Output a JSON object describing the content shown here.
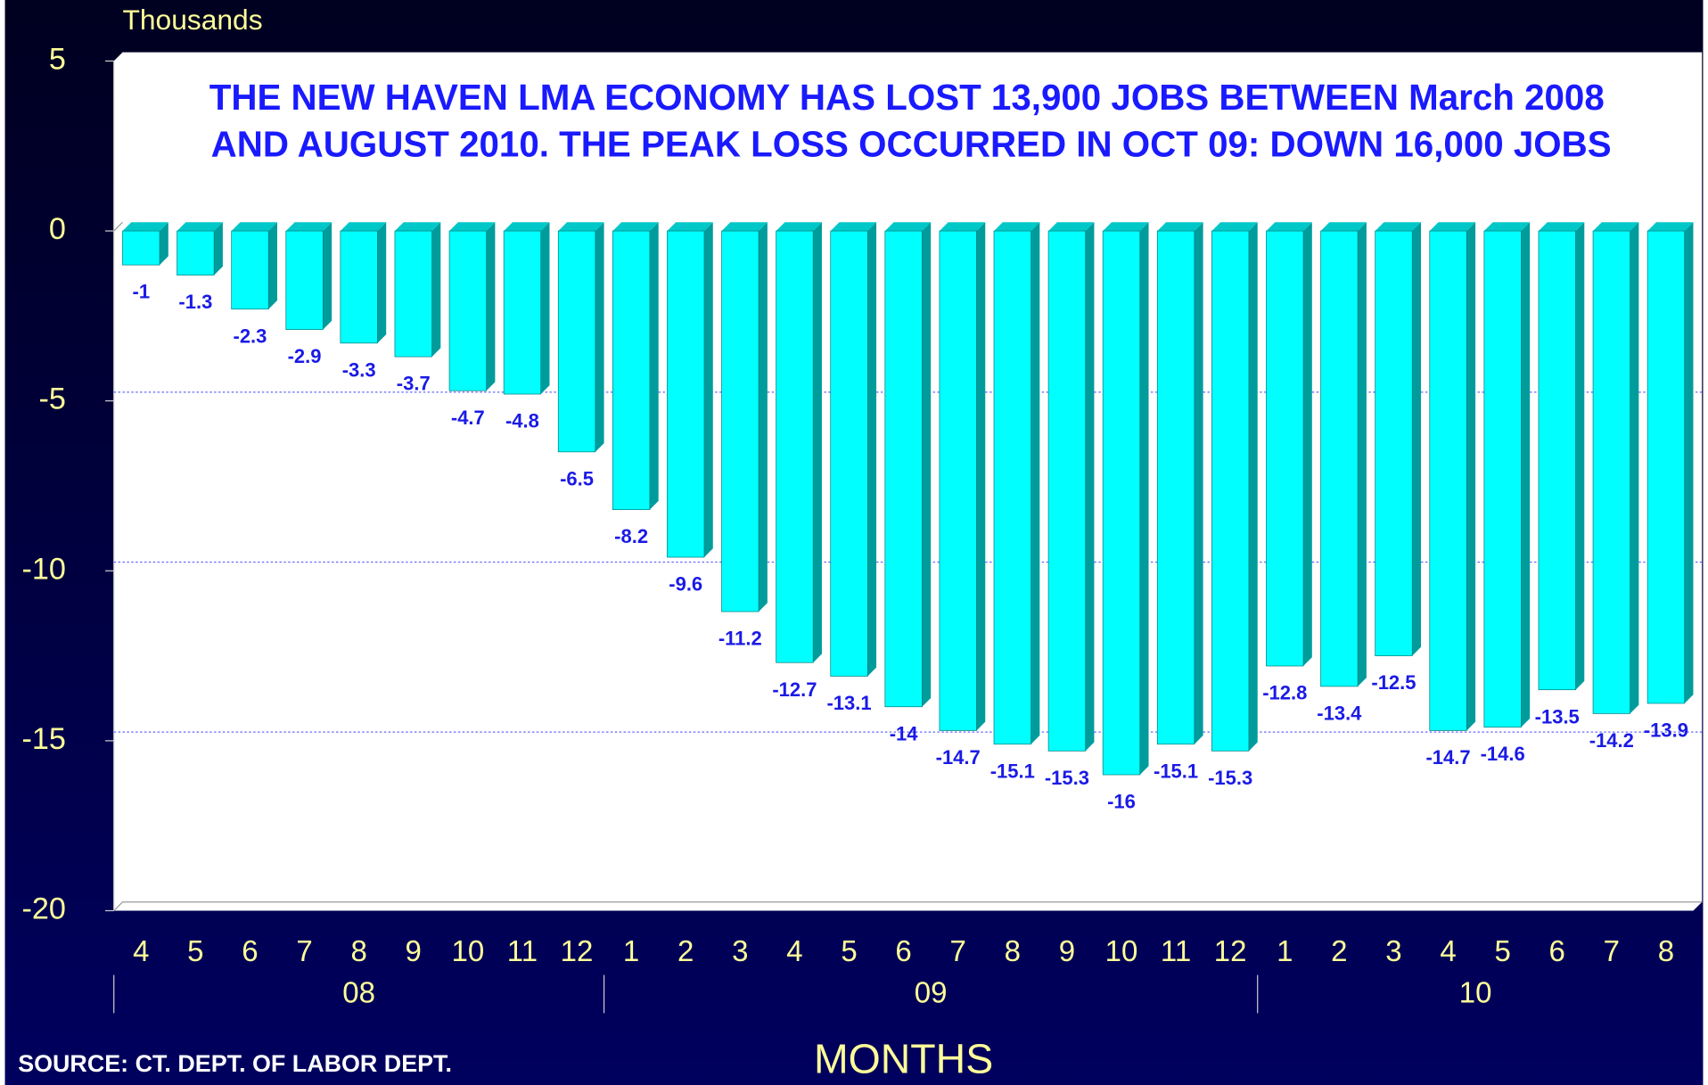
{
  "chart_data": {
    "type": "bar",
    "title": [
      "THE NEW HAVEN LMA ECONOMY HAS LOST 13,900 JOBS BETWEEN March 2008",
      "AND AUGUST 2010. THE PEAK LOSS OCCURRED IN OCT 09: DOWN 16,000 JOBS"
    ],
    "y_unit_label": "Thousands",
    "x_label": "MONTHS",
    "source": "SOURCE: CT. DEPT. OF LABOR DEPT.",
    "categories": [
      "4",
      "5",
      "6",
      "7",
      "8",
      "9",
      "10",
      "11",
      "12",
      "1",
      "2",
      "3",
      "4",
      "5",
      "6",
      "7",
      "8",
      "9",
      "10",
      "11",
      "12",
      "1",
      "2",
      "3",
      "4",
      "5",
      "6",
      "7",
      "8"
    ],
    "groups": [
      "08",
      "09",
      "10"
    ],
    "values": [
      -1,
      -1.3,
      -2.3,
      -2.9,
      -3.3,
      -3.7,
      -4.7,
      -4.8,
      -6.5,
      -8.2,
      -9.6,
      -11.2,
      -12.7,
      -13.1,
      -14,
      -14.7,
      -15.1,
      -15.3,
      -16,
      -15.1,
      -15.3,
      -12.8,
      -13.4,
      -12.5,
      -14.7,
      -14.6,
      -13.5,
      -14.2,
      -13.9
    ],
    "color": "#00ffff",
    "ylim": [
      -20,
      5
    ],
    "yticks": [
      -20,
      -15,
      -10,
      -5,
      0,
      5
    ],
    "grid": true
  }
}
